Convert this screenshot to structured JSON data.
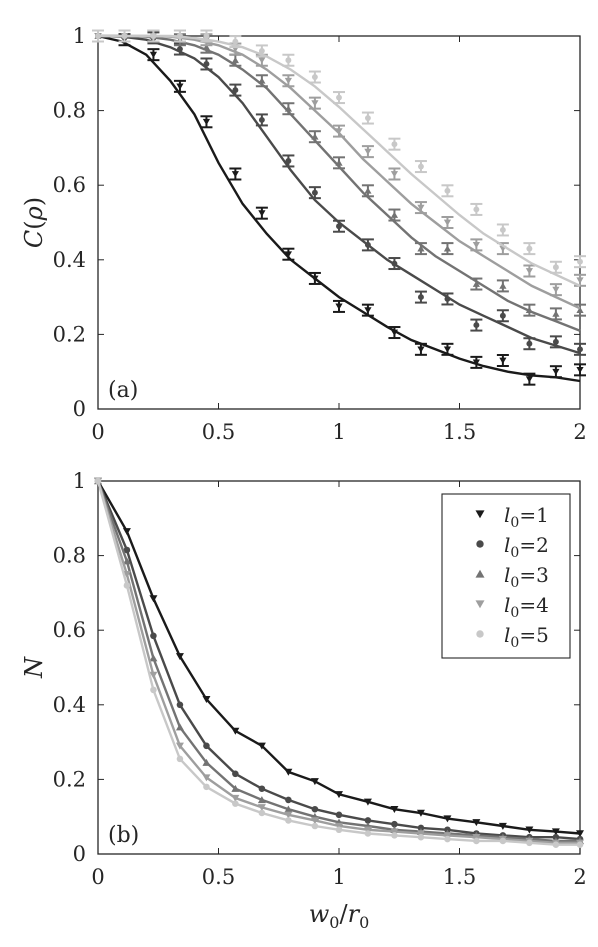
{
  "chart_data": [
    {
      "panel_label": "(a)",
      "type": "line",
      "xlabel": "",
      "ylabel": "C(ρ)",
      "xlim": [
        0,
        2
      ],
      "ylim": [
        0,
        1
      ],
      "xticks": [
        "0",
        "0.5",
        "1",
        "1.5",
        "2"
      ],
      "yticks": [
        "0",
        "0.2",
        "0.4",
        "0.6",
        "0.8",
        "1"
      ],
      "grid": false,
      "series": [
        {
          "name": "l0=1",
          "color": "#1a1a1a",
          "marker": "triangle-down",
          "line": {
            "x": [
              0,
              0.1,
              0.2,
              0.3,
              0.4,
              0.5,
              0.6,
              0.7,
              0.8,
              0.9,
              1.0,
              1.1,
              1.2,
              1.3,
              1.4,
              1.5,
              1.6,
              1.7,
              1.8,
              1.9,
              2.0
            ],
            "y": [
              1,
              0.985,
              0.95,
              0.88,
              0.79,
              0.66,
              0.55,
              0.47,
              0.4,
              0.35,
              0.3,
              0.26,
              0.22,
              0.185,
              0.16,
              0.135,
              0.115,
              0.1,
              0.09,
              0.085,
              0.075
            ]
          },
          "points": {
            "x": [
              0,
              0.11,
              0.23,
              0.34,
              0.45,
              0.57,
              0.68,
              0.79,
              0.9,
              1.0,
              1.12,
              1.23,
              1.34,
              1.45,
              1.57,
              1.68,
              1.79,
              1.9,
              2.0
            ],
            "y": [
              1,
              0.99,
              0.95,
              0.865,
              0.77,
              0.63,
              0.525,
              0.415,
              0.35,
              0.275,
              0.265,
              0.205,
              0.16,
              0.16,
              0.125,
              0.13,
              0.08,
              0.1,
              0.105
            ]
          }
        },
        {
          "name": "l0=2",
          "color": "#4a4a4a",
          "marker": "circle",
          "line": {
            "x": [
              0,
              0.1,
              0.2,
              0.3,
              0.4,
              0.5,
              0.6,
              0.7,
              0.8,
              0.9,
              1.0,
              1.1,
              1.2,
              1.3,
              1.4,
              1.5,
              1.6,
              1.7,
              1.8,
              1.9,
              2.0
            ],
            "y": [
              1,
              0.998,
              0.99,
              0.97,
              0.94,
              0.89,
              0.82,
              0.73,
              0.64,
              0.56,
              0.5,
              0.45,
              0.4,
              0.36,
              0.32,
              0.28,
              0.25,
              0.22,
              0.19,
              0.17,
              0.15
            ]
          },
          "points": {
            "x": [
              0,
              0.11,
              0.23,
              0.34,
              0.45,
              0.57,
              0.68,
              0.79,
              0.9,
              1.0,
              1.12,
              1.23,
              1.34,
              1.45,
              1.57,
              1.68,
              1.79,
              1.9,
              2.0
            ],
            "y": [
              1,
              1,
              0.995,
              0.965,
              0.925,
              0.855,
              0.775,
              0.665,
              0.58,
              0.49,
              0.44,
              0.39,
              0.3,
              0.295,
              0.225,
              0.25,
              0.175,
              0.18,
              0.16
            ]
          }
        },
        {
          "name": "l0=3",
          "color": "#737373",
          "marker": "triangle-up",
          "line": {
            "x": [
              0,
              0.1,
              0.2,
              0.3,
              0.4,
              0.5,
              0.6,
              0.7,
              0.8,
              0.9,
              1.0,
              1.1,
              1.2,
              1.3,
              1.4,
              1.5,
              1.6,
              1.7,
              1.8,
              1.9,
              2.0
            ],
            "y": [
              1,
              1,
              0.998,
              0.99,
              0.975,
              0.95,
              0.91,
              0.86,
              0.79,
              0.72,
              0.65,
              0.58,
              0.52,
              0.46,
              0.41,
              0.37,
              0.33,
              0.29,
              0.26,
              0.235,
              0.21
            ]
          },
          "points": {
            "x": [
              0,
              0.11,
              0.23,
              0.34,
              0.45,
              0.57,
              0.68,
              0.79,
              0.9,
              1.0,
              1.12,
              1.23,
              1.34,
              1.45,
              1.57,
              1.68,
              1.79,
              1.9,
              2.0
            ],
            "y": [
              1,
              1,
              1,
              0.99,
              0.97,
              0.935,
              0.88,
              0.805,
              0.73,
              0.66,
              0.585,
              0.52,
              0.43,
              0.43,
              0.335,
              0.33,
              0.265,
              0.255,
              0.265
            ]
          }
        },
        {
          "name": "l0=4",
          "color": "#9e9e9e",
          "marker": "triangle-down",
          "line": {
            "x": [
              0,
              0.1,
              0.2,
              0.3,
              0.4,
              0.5,
              0.6,
              0.7,
              0.8,
              0.9,
              1.0,
              1.1,
              1.2,
              1.3,
              1.4,
              1.5,
              1.6,
              1.7,
              1.8,
              1.9,
              2.0
            ],
            "y": [
              1,
              1,
              1,
              0.998,
              0.99,
              0.975,
              0.95,
              0.91,
              0.86,
              0.8,
              0.74,
              0.67,
              0.61,
              0.55,
              0.5,
              0.45,
              0.41,
              0.37,
              0.33,
              0.3,
              0.27
            ]
          },
          "points": {
            "x": [
              0,
              0.11,
              0.23,
              0.34,
              0.45,
              0.57,
              0.68,
              0.79,
              0.9,
              1.0,
              1.12,
              1.23,
              1.34,
              1.45,
              1.57,
              1.68,
              1.79,
              1.9,
              2.0
            ],
            "y": [
              1,
              1,
              1,
              1,
              0.99,
              0.965,
              0.935,
              0.88,
              0.82,
              0.745,
              0.69,
              0.63,
              0.54,
              0.5,
              0.44,
              0.43,
              0.37,
              0.32,
              0.345
            ]
          }
        },
        {
          "name": "l0=5",
          "color": "#c8c8c8",
          "marker": "circle",
          "line": {
            "x": [
              0,
              0.1,
              0.2,
              0.3,
              0.4,
              0.5,
              0.6,
              0.7,
              0.8,
              0.9,
              1.0,
              1.1,
              1.2,
              1.3,
              1.4,
              1.5,
              1.6,
              1.7,
              1.8,
              1.9,
              2.0
            ],
            "y": [
              1,
              1,
              1,
              1,
              0.995,
              0.985,
              0.97,
              0.945,
              0.91,
              0.865,
              0.81,
              0.75,
              0.69,
              0.63,
              0.575,
              0.52,
              0.47,
              0.43,
              0.39,
              0.36,
              0.33
            ]
          },
          "points": {
            "x": [
              0,
              0.11,
              0.23,
              0.34,
              0.45,
              0.57,
              0.68,
              0.79,
              0.9,
              1.0,
              1.12,
              1.23,
              1.34,
              1.45,
              1.57,
              1.68,
              1.79,
              1.9,
              2.0
            ],
            "y": [
              1,
              1,
              1,
              1,
              1,
              0.985,
              0.96,
              0.935,
              0.89,
              0.835,
              0.78,
              0.71,
              0.65,
              0.585,
              0.535,
              0.48,
              0.43,
              0.38,
              0.395
            ]
          }
        }
      ]
    },
    {
      "panel_label": "(b)",
      "type": "line",
      "xlabel": "w0/r0",
      "ylabel": "N",
      "xlim": [
        0,
        2
      ],
      "ylim": [
        0,
        1
      ],
      "xticks": [
        "0",
        "0.5",
        "1",
        "1.5",
        "2"
      ],
      "yticks": [
        "0",
        "0.2",
        "0.4",
        "0.6",
        "0.8",
        "1"
      ],
      "grid": false,
      "legend": {
        "placement": "top-right",
        "entries": [
          {
            "base": "l",
            "sub": "0",
            "suffix": "=1"
          },
          {
            "base": "l",
            "sub": "0",
            "suffix": "=2"
          },
          {
            "base": "l",
            "sub": "0",
            "suffix": "=3"
          },
          {
            "base": "l",
            "sub": "0",
            "suffix": "=4"
          },
          {
            "base": "l",
            "sub": "0",
            "suffix": "=5"
          }
        ]
      },
      "series": [
        {
          "name": "l0=1",
          "color": "#1a1a1a",
          "marker": "triangle-down",
          "x": [
            0,
            0.12,
            0.23,
            0.34,
            0.45,
            0.57,
            0.68,
            0.79,
            0.9,
            1.0,
            1.12,
            1.23,
            1.34,
            1.45,
            1.57,
            1.68,
            1.79,
            1.9,
            2.0
          ],
          "y": [
            1,
            0.865,
            0.685,
            0.53,
            0.415,
            0.33,
            0.29,
            0.22,
            0.195,
            0.16,
            0.14,
            0.12,
            0.11,
            0.095,
            0.085,
            0.075,
            0.065,
            0.06,
            0.055
          ]
        },
        {
          "name": "l0=2",
          "color": "#4a4a4a",
          "marker": "circle",
          "x": [
            0,
            0.12,
            0.23,
            0.34,
            0.45,
            0.57,
            0.68,
            0.79,
            0.9,
            1.0,
            1.12,
            1.23,
            1.34,
            1.45,
            1.57,
            1.68,
            1.79,
            1.9,
            2.0
          ],
          "y": [
            1,
            0.815,
            0.585,
            0.4,
            0.29,
            0.215,
            0.175,
            0.145,
            0.12,
            0.105,
            0.09,
            0.08,
            0.07,
            0.065,
            0.055,
            0.05,
            0.045,
            0.045,
            0.04
          ]
        },
        {
          "name": "l0=3",
          "color": "#737373",
          "marker": "triangle-up",
          "x": [
            0,
            0.12,
            0.23,
            0.34,
            0.45,
            0.57,
            0.68,
            0.79,
            0.9,
            1.0,
            1.12,
            1.23,
            1.34,
            1.45,
            1.57,
            1.68,
            1.79,
            1.9,
            2.0
          ],
          "y": [
            1,
            0.785,
            0.525,
            0.34,
            0.245,
            0.175,
            0.145,
            0.12,
            0.1,
            0.085,
            0.075,
            0.065,
            0.06,
            0.055,
            0.05,
            0.045,
            0.04,
            0.035,
            0.035
          ]
        },
        {
          "name": "l0=4",
          "color": "#9e9e9e",
          "marker": "triangle-down",
          "x": [
            0,
            0.12,
            0.23,
            0.34,
            0.45,
            0.57,
            0.68,
            0.79,
            0.9,
            1.0,
            1.12,
            1.23,
            1.34,
            1.45,
            1.57,
            1.68,
            1.79,
            1.9,
            2.0
          ],
          "y": [
            1,
            0.75,
            0.48,
            0.29,
            0.205,
            0.15,
            0.125,
            0.105,
            0.09,
            0.075,
            0.065,
            0.06,
            0.055,
            0.05,
            0.045,
            0.04,
            0.035,
            0.03,
            0.03
          ]
        },
        {
          "name": "l0=5",
          "color": "#c8c8c8",
          "marker": "circle",
          "x": [
            0,
            0.12,
            0.23,
            0.34,
            0.45,
            0.57,
            0.68,
            0.79,
            0.9,
            1.0,
            1.12,
            1.23,
            1.34,
            1.45,
            1.57,
            1.68,
            1.79,
            1.9,
            2.0
          ],
          "y": [
            1,
            0.72,
            0.44,
            0.255,
            0.18,
            0.135,
            0.11,
            0.09,
            0.075,
            0.065,
            0.055,
            0.05,
            0.045,
            0.04,
            0.035,
            0.035,
            0.03,
            0.025,
            0.025
          ]
        }
      ]
    }
  ]
}
